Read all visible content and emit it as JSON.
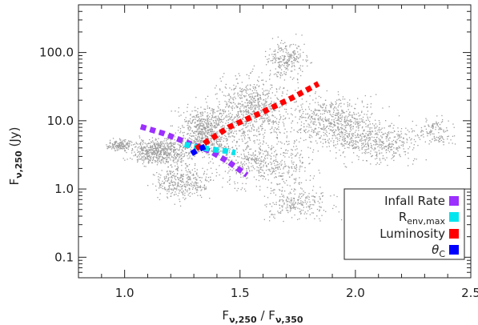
{
  "chart_data": {
    "type": "scatter",
    "title": "",
    "xlabel": "Fν,250 / Fν,350",
    "xlabel_parts": {
      "base1": "F",
      "sub1": "ν,250",
      "sep": " / ",
      "base2": "F",
      "sub2": "ν,350"
    },
    "ylabel": "Fν,250 (Jy)",
    "ylabel_parts": {
      "base": "F",
      "sub": "ν,250",
      "unit": " (Jy)"
    },
    "xlim": [
      0.8,
      2.5
    ],
    "ylim": [
      0.05,
      500
    ],
    "yscale": "log",
    "xticks": [
      1.0,
      1.5,
      2.0,
      2.5
    ],
    "xtick_labels": [
      "1.0",
      "1.5",
      "2.0",
      "2.5"
    ],
    "yticks": [
      0.1,
      1.0,
      10.0,
      100.0
    ],
    "ytick_labels": [
      "0.1",
      "1.0",
      "10.0",
      "100.0"
    ],
    "grid": false,
    "legend_position": "bottom-right",
    "background_model_grid": {
      "color": "#a0a0a0",
      "x_range": [
        0.88,
        2.5
      ],
      "y_range": [
        0.25,
        200
      ],
      "description_note": "dense grey point cloud of model SEDs"
    },
    "series": [
      {
        "name": "Infall Rate",
        "color": "#9b30ff",
        "x": [
          1.07,
          1.17,
          1.27,
          1.37,
          1.45,
          1.53
        ],
        "y": [
          8.2,
          6.5,
          4.8,
          3.6,
          2.5,
          1.6
        ]
      },
      {
        "name": "R_env,max",
        "label_base": "R",
        "label_sub": "env,max",
        "color": "#00e5ee",
        "x": [
          1.26,
          1.32,
          1.38,
          1.44,
          1.48
        ],
        "y": [
          4.5,
          4.1,
          3.8,
          3.6,
          3.4
        ]
      },
      {
        "name": "Luminosity",
        "color": "#ff0000",
        "x": [
          1.31,
          1.45,
          1.6,
          1.73,
          1.84
        ],
        "y": [
          3.9,
          8.0,
          13.5,
          22.0,
          35.0
        ]
      },
      {
        "name": "θC",
        "label_base": "θ",
        "label_sub": "C",
        "color": "#0000ff",
        "x": [
          1.29,
          1.32,
          1.35
        ],
        "y": [
          3.3,
          3.8,
          4.2
        ]
      }
    ]
  }
}
